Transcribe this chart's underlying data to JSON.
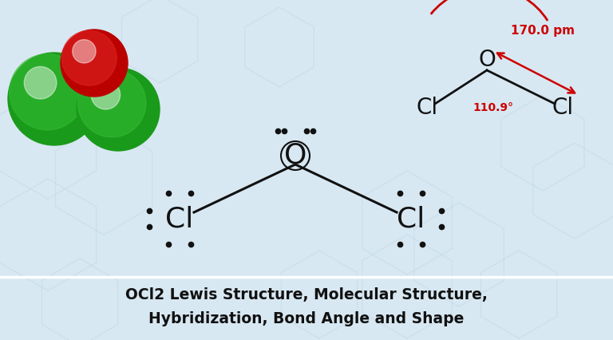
{
  "bg_color": "#d8e8f2",
  "title_line1": "OCl2 Lewis Structure, Molecular Structure,",
  "title_line2": "Hybridization, Bond Angle and Shape",
  "title_color": "#111111",
  "title_fontsize": 13.5,
  "atom_color": "#111111",
  "red_color": "#cc0000",
  "dot_color": "#111111",
  "bond_length_text": "170.0 pm",
  "bond_angle_text": "110.9°",
  "green_dark": "#1a9a1a",
  "green_mid": "#33bb33",
  "green_light": "#88ee88",
  "red_dark": "#bb0000",
  "red_mid": "#dd2222",
  "red_light": "#ff6666",
  "hex_color": "#b8cfe0",
  "hex_alpha": 0.35
}
